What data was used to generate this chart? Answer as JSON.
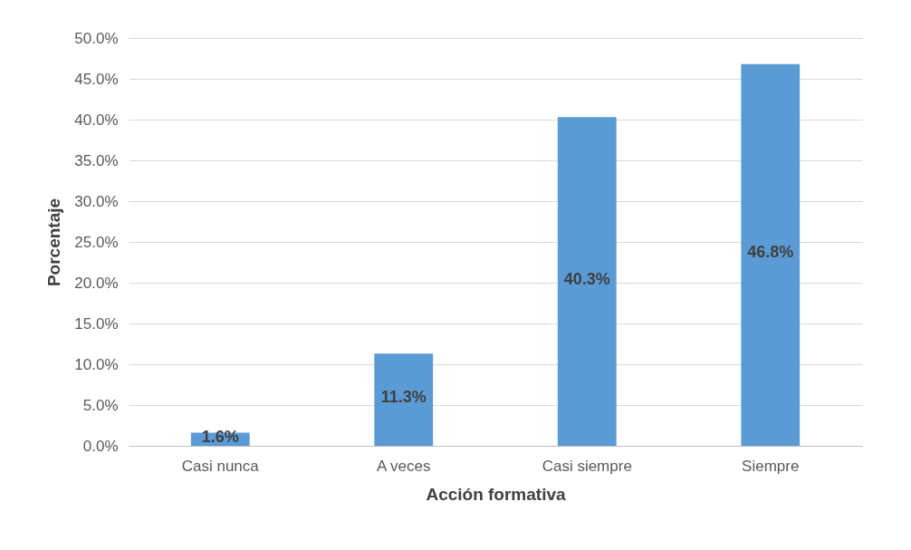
{
  "chart_data": {
    "type": "bar",
    "xlabel": "Acción formativa",
    "ylabel": "Porcentaje",
    "categories": [
      "Casi nunca",
      "A  veces",
      "Casi siempre",
      "Siempre"
    ],
    "values": [
      1.6,
      11.3,
      40.3,
      46.8
    ],
    "value_labels": [
      "1.6%",
      "11.3%",
      "40.3%",
      "46.8%"
    ],
    "color": "#5b9bd5",
    "ylim": [
      0,
      50
    ],
    "yticks": [
      {
        "value": 0,
        "label": "0.0%"
      },
      {
        "value": 5,
        "label": "5.0%"
      },
      {
        "value": 10,
        "label": "10.0%"
      },
      {
        "value": 15,
        "label": "15.0%"
      },
      {
        "value": 20,
        "label": "20.0%"
      },
      {
        "value": 25,
        "label": "25.0%"
      },
      {
        "value": 30,
        "label": "30.0%"
      },
      {
        "value": 35,
        "label": "35.0%"
      },
      {
        "value": 40,
        "label": "40.0%"
      },
      {
        "value": 45,
        "label": "45.0%"
      },
      {
        "value": 50,
        "label": "50.0%"
      }
    ],
    "grid": "y"
  }
}
